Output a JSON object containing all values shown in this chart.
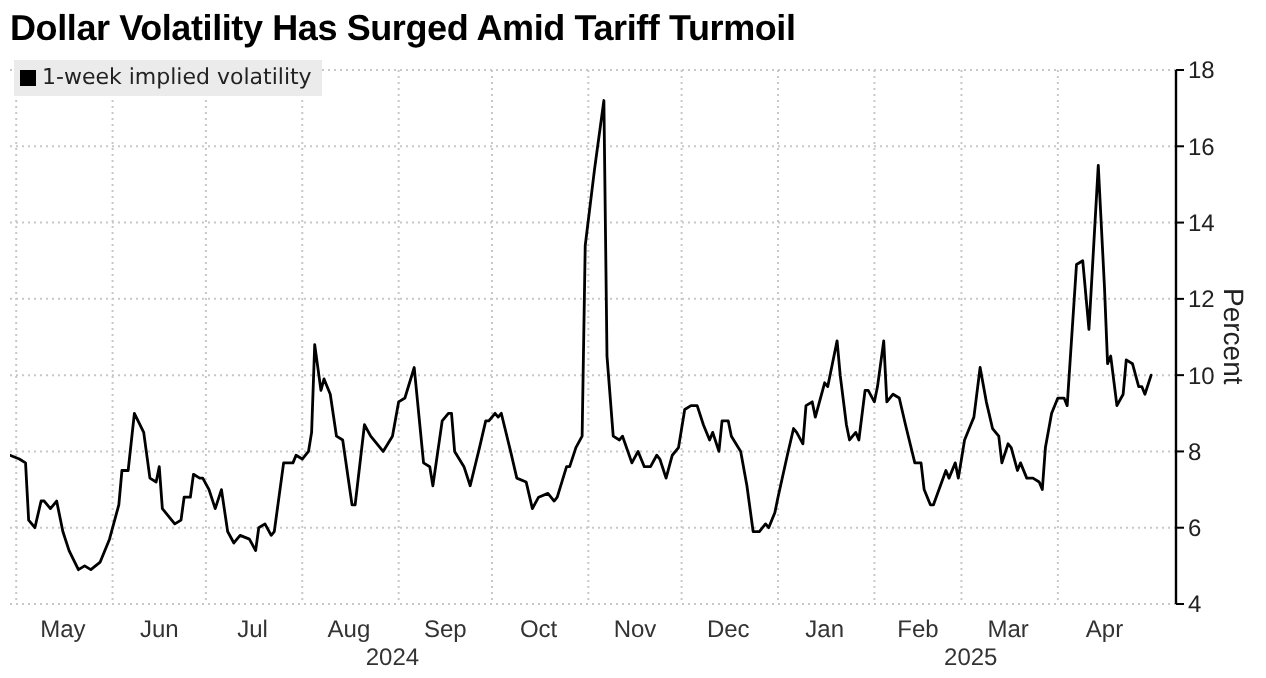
{
  "chart_data": {
    "type": "line",
    "title": "Dollar Volatility Has Surged Amid Tariff Turmoil",
    "ylabel": "Percent",
    "x": [
      "2024-04-29",
      "2024-05-02",
      "2024-05-04",
      "2024-05-05",
      "2024-05-07",
      "2024-05-09",
      "2024-05-10",
      "2024-05-12",
      "2024-05-14",
      "2024-05-16",
      "2024-05-18",
      "2024-05-21",
      "2024-05-23",
      "2024-05-25",
      "2024-05-28",
      "2024-05-31",
      "2024-06-03",
      "2024-06-04",
      "2024-06-06",
      "2024-06-08",
      "2024-06-11",
      "2024-06-13",
      "2024-06-15",
      "2024-06-16",
      "2024-06-17",
      "2024-06-20",
      "2024-06-21",
      "2024-06-23",
      "2024-06-24",
      "2024-06-26",
      "2024-06-27",
      "2024-06-29",
      "2024-06-30",
      "2024-07-02",
      "2024-07-04",
      "2024-07-06",
      "2024-07-08",
      "2024-07-10",
      "2024-07-12",
      "2024-07-15",
      "2024-07-17",
      "2024-07-18",
      "2024-07-20",
      "2024-07-22",
      "2024-07-23",
      "2024-07-26",
      "2024-07-29",
      "2024-07-30",
      "2024-08-01",
      "2024-08-03",
      "2024-08-04",
      "2024-08-05",
      "2024-08-07",
      "2024-08-08",
      "2024-08-10",
      "2024-08-12",
      "2024-08-14",
      "2024-08-17",
      "2024-08-18",
      "2024-08-21",
      "2024-08-23",
      "2024-08-27",
      "2024-08-30",
      "2024-09-01",
      "2024-09-03",
      "2024-09-06",
      "2024-09-09",
      "2024-09-11",
      "2024-09-12",
      "2024-09-15",
      "2024-09-17",
      "2024-09-18",
      "2024-09-19",
      "2024-09-22",
      "2024-09-24",
      "2024-09-27",
      "2024-09-29",
      "2024-09-30",
      "2024-10-02",
      "2024-10-03",
      "2024-10-04",
      "2024-10-07",
      "2024-10-09",
      "2024-10-12",
      "2024-10-14",
      "2024-10-16",
      "2024-10-19",
      "2024-10-21",
      "2024-10-22",
      "2024-10-25",
      "2024-10-26",
      "2024-10-28",
      "2024-10-30",
      "2024-10-31",
      "2024-11-03",
      "2024-11-06",
      "2024-11-07",
      "2024-11-09",
      "2024-11-11",
      "2024-11-12",
      "2024-11-15",
      "2024-11-17",
      "2024-11-19",
      "2024-11-21",
      "2024-11-23",
      "2024-11-24",
      "2024-11-26",
      "2024-11-28",
      "2024-11-30",
      "2024-12-02",
      "2024-12-04",
      "2024-12-06",
      "2024-12-08",
      "2024-12-10",
      "2024-12-11",
      "2024-12-13",
      "2024-12-14",
      "2024-12-16",
      "2024-12-17",
      "2024-12-20",
      "2024-12-22",
      "2024-12-24",
      "2024-12-26",
      "2024-12-28",
      "2024-12-29",
      "2024-12-31",
      "2025-01-01",
      "2025-01-04",
      "2025-01-06",
      "2025-01-07",
      "2025-01-09",
      "2025-01-10",
      "2025-01-12",
      "2025-01-13",
      "2025-01-16",
      "2025-01-17",
      "2025-01-20",
      "2025-01-21",
      "2025-01-23",
      "2025-01-24",
      "2025-01-26",
      "2025-01-27",
      "2025-01-29",
      "2025-01-30",
      "2025-02-01",
      "2025-02-02",
      "2025-02-04",
      "2025-02-05",
      "2025-02-07",
      "2025-02-09",
      "2025-02-11",
      "2025-02-14",
      "2025-02-16",
      "2025-02-17",
      "2025-02-19",
      "2025-02-20",
      "2025-02-24",
      "2025-02-25",
      "2025-02-27",
      "2025-02-28",
      "2025-03-02",
      "2025-03-04",
      "2025-03-05",
      "2025-03-07",
      "2025-03-09",
      "2025-03-11",
      "2025-03-13",
      "2025-03-14",
      "2025-03-16",
      "2025-03-17",
      "2025-03-19",
      "2025-03-20",
      "2025-03-22",
      "2025-03-24",
      "2025-03-26",
      "2025-03-27",
      "2025-03-28",
      "2025-03-30",
      "2025-04-01",
      "2025-04-03",
      "2025-04-04",
      "2025-04-07",
      "2025-04-09",
      "2025-04-11",
      "2025-04-14",
      "2025-04-16",
      "2025-04-17",
      "2025-04-18",
      "2025-04-20",
      "2025-04-22",
      "2025-04-23",
      "2025-04-25",
      "2025-04-27",
      "2025-04-28",
      "2025-04-29",
      "2025-05-01"
    ],
    "series": [
      {
        "name": "1-week implied volatility",
        "color": "#000000",
        "values": [
          7.9,
          7.8,
          7.7,
          6.2,
          6.0,
          6.7,
          6.7,
          6.5,
          6.7,
          5.9,
          5.4,
          4.9,
          5.0,
          4.9,
          5.1,
          5.7,
          6.6,
          7.5,
          7.5,
          9.0,
          8.5,
          7.3,
          7.2,
          7.6,
          6.5,
          6.2,
          6.1,
          6.2,
          6.8,
          6.8,
          7.4,
          7.3,
          7.3,
          7.0,
          6.5,
          7.0,
          5.9,
          5.6,
          5.8,
          5.7,
          5.4,
          6.0,
          6.1,
          5.8,
          5.9,
          7.7,
          7.7,
          7.9,
          7.8,
          8.0,
          8.5,
          10.8,
          9.6,
          9.9,
          9.5,
          8.4,
          8.3,
          6.6,
          6.6,
          8.7,
          8.4,
          8.0,
          8.4,
          9.3,
          9.4,
          10.2,
          7.7,
          7.6,
          7.1,
          8.8,
          9.0,
          9.0,
          8.0,
          7.6,
          7.1,
          8.1,
          8.8,
          8.8,
          9.0,
          8.9,
          9.0,
          8.0,
          7.3,
          7.2,
          6.5,
          6.8,
          6.9,
          6.7,
          6.8,
          7.6,
          7.6,
          8.1,
          8.4,
          13.4,
          15.4,
          17.2,
          10.5,
          8.4,
          8.3,
          8.4,
          7.7,
          8.0,
          7.6,
          7.6,
          7.9,
          7.8,
          7.3,
          7.9,
          8.1,
          9.1,
          9.2,
          9.2,
          8.7,
          8.3,
          8.5,
          8.0,
          8.8,
          8.8,
          8.4,
          8.0,
          7.1,
          5.9,
          5.9,
          6.1,
          6.0,
          6.4,
          6.8,
          7.9,
          8.6,
          8.5,
          8.2,
          9.2,
          9.3,
          8.9,
          9.8,
          9.7,
          10.9,
          10.0,
          8.7,
          8.3,
          8.5,
          8.3,
          9.6,
          9.6,
          9.3,
          9.7,
          10.9,
          9.3,
          9.5,
          9.4,
          8.7,
          7.7,
          7.7,
          7.0,
          6.6,
          6.6,
          7.5,
          7.3,
          7.7,
          7.3,
          8.3,
          8.7,
          8.9,
          10.2,
          9.3,
          8.6,
          8.4,
          7.7,
          8.2,
          8.1,
          7.5,
          7.7,
          7.3,
          7.3,
          7.2,
          7.0,
          8.1,
          9.0,
          9.4,
          9.4,
          9.2,
          12.9,
          13.0,
          11.2,
          15.5,
          12.3,
          10.3,
          10.5,
          9.2,
          9.5,
          10.4,
          10.3,
          9.7,
          9.7,
          9.5,
          10.0
        ]
      }
    ],
    "xlim": [
      "2024-04-29",
      "2025-05-09"
    ],
    "xticks": [
      {
        "value": "2024-05-01",
        "label": null
      },
      {
        "value": "2024-05-16",
        "label": "May"
      },
      {
        "value": "2024-06-01",
        "label": null
      },
      {
        "value": "2024-06-16",
        "label": "Jun"
      },
      {
        "value": "2024-07-01",
        "label": null
      },
      {
        "value": "2024-07-16",
        "label": "Jul"
      },
      {
        "value": "2024-08-01",
        "label": null
      },
      {
        "value": "2024-08-16",
        "label": "Aug"
      },
      {
        "value": "2024-09-01",
        "label": null
      },
      {
        "value": "2024-09-16",
        "label": "Sep"
      },
      {
        "value": "2024-10-01",
        "label": null
      },
      {
        "value": "2024-10-16",
        "label": "Oct"
      },
      {
        "value": "2024-11-01",
        "label": null
      },
      {
        "value": "2024-11-16",
        "label": "Nov"
      },
      {
        "value": "2024-12-01",
        "label": null
      },
      {
        "value": "2024-12-16",
        "label": "Dec"
      },
      {
        "value": "2025-01-01",
        "label": null
      },
      {
        "value": "2025-01-16",
        "label": "Jan"
      },
      {
        "value": "2025-02-01",
        "label": null
      },
      {
        "value": "2025-02-15",
        "label": "Feb"
      },
      {
        "value": "2025-03-01",
        "label": null
      },
      {
        "value": "2025-03-16",
        "label": "Mar"
      },
      {
        "value": "2025-04-01",
        "label": null
      },
      {
        "value": "2025-04-16",
        "label": "Apr"
      }
    ],
    "x2lim": [
      "2024-04-29",
      "2025-05-09"
    ],
    "x2ticks": [
      {
        "value": "2024-08-30",
        "label": "2024"
      },
      {
        "value": "2025-03-04",
        "label": "2025"
      }
    ],
    "ylim": [
      4,
      18
    ],
    "yticks": [
      4,
      6,
      8,
      10,
      12,
      14,
      16,
      18
    ],
    "grid": true,
    "legend": "top left"
  }
}
